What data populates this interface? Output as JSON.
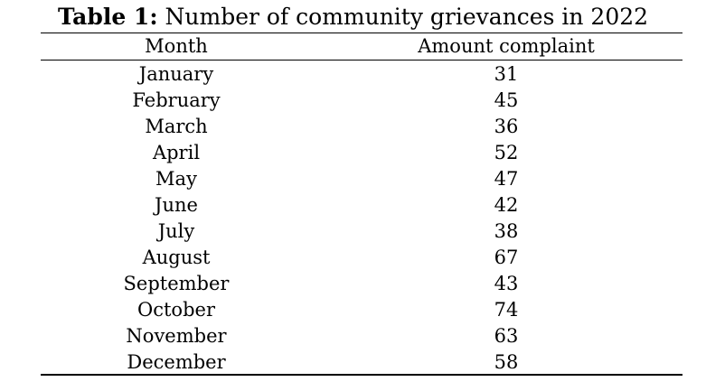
{
  "caption": {
    "label": "Table 1:",
    "text": "Number of community grievances in 2022"
  },
  "table": {
    "headers": {
      "month": "Month",
      "amount": "Amount complaint"
    },
    "rows": [
      {
        "month": "January",
        "amount": "31"
      },
      {
        "month": "February",
        "amount": "45"
      },
      {
        "month": "March",
        "amount": "36"
      },
      {
        "month": "April",
        "amount": "52"
      },
      {
        "month": "May",
        "amount": "47"
      },
      {
        "month": "June",
        "amount": "42"
      },
      {
        "month": "July",
        "amount": "38"
      },
      {
        "month": "August",
        "amount": "67"
      },
      {
        "month": "September",
        "amount": "43"
      },
      {
        "month": "October",
        "amount": "74"
      },
      {
        "month": "November",
        "amount": "63"
      },
      {
        "month": "December",
        "amount": "58"
      }
    ]
  }
}
